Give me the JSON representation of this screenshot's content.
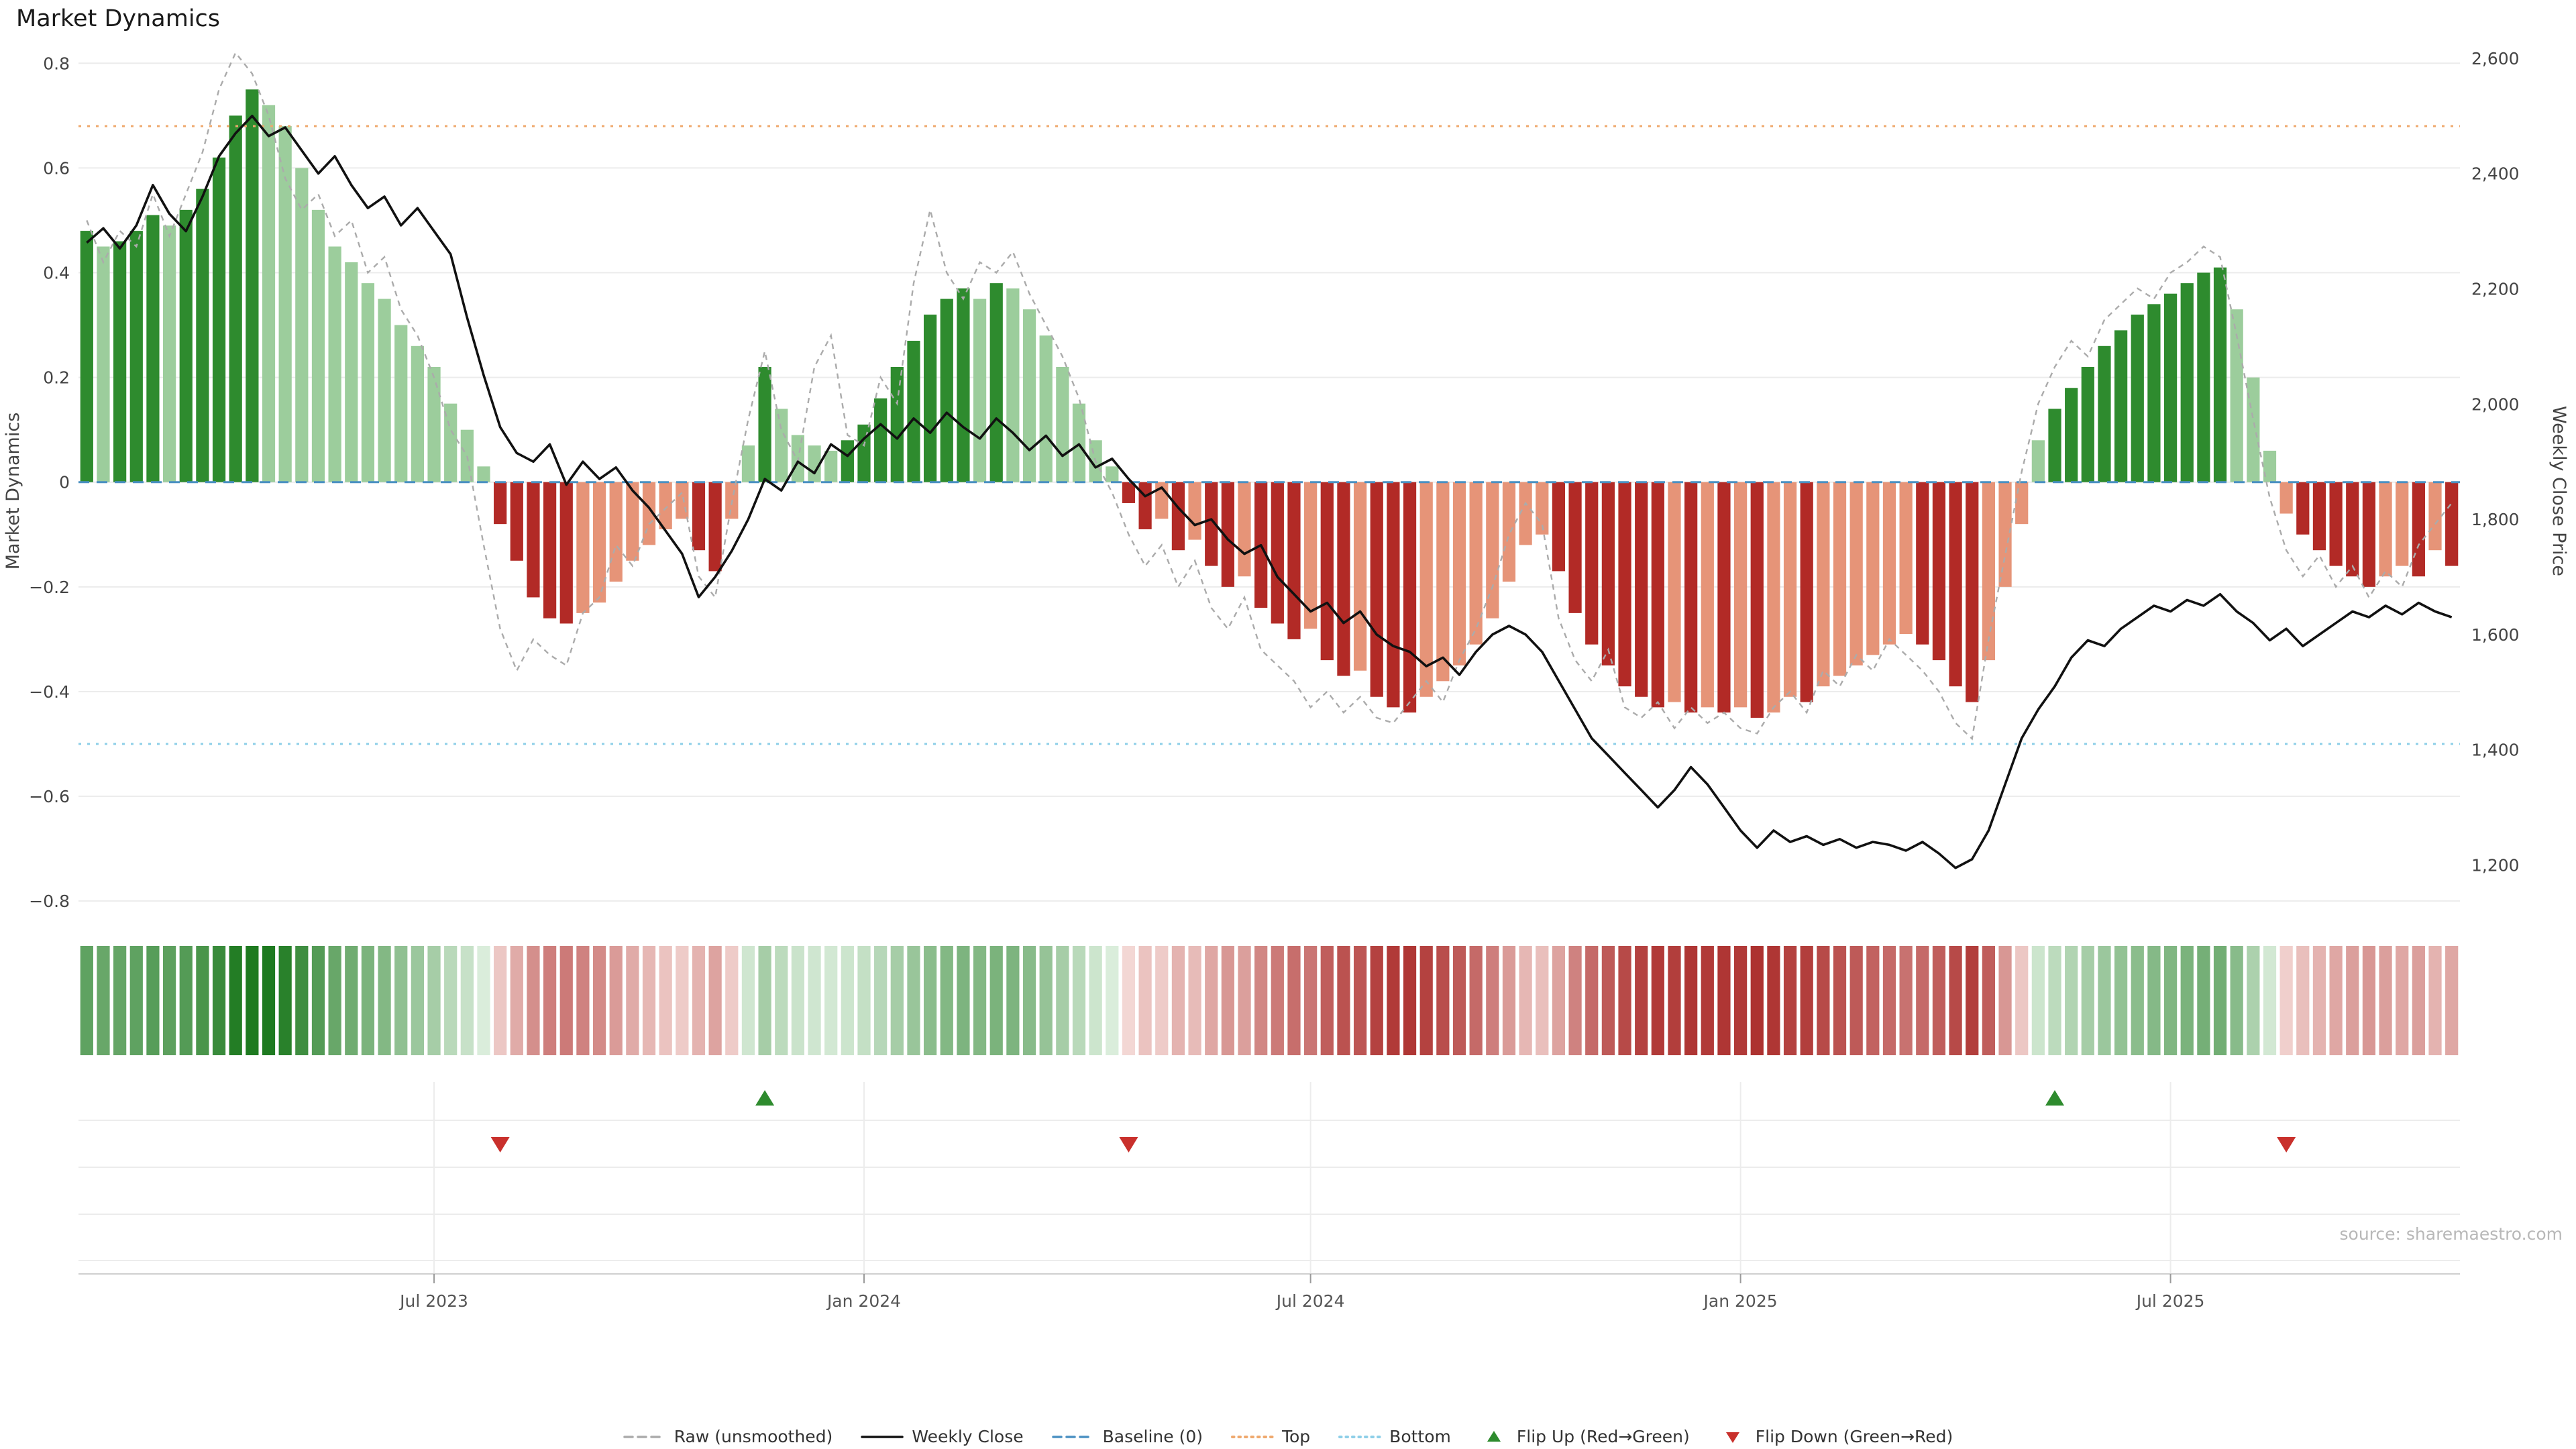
{
  "title": "Market Dynamics",
  "source": "source: sharemaestro.com",
  "left_axis": {
    "label": "Market Dynamics",
    "tick_values": [
      0.8,
      0.6,
      0.4,
      0.2,
      0,
      -0.2,
      -0.4,
      -0.6,
      -0.8
    ],
    "tick_labels": [
      "0.8",
      "0.6",
      "0.4",
      "0.2",
      "0",
      "−0.2",
      "−0.4",
      "−0.6",
      "−0.8"
    ]
  },
  "right_axis": {
    "label": "Weekly Close Price",
    "tick_values": [
      2600,
      2400,
      2200,
      2000,
      1800,
      1600,
      1400,
      1200
    ],
    "tick_labels": [
      "2,600",
      "2,400",
      "2,200",
      "2,000",
      "1,800",
      "1,600",
      "1,400",
      "1,200"
    ]
  },
  "chart_data": {
    "type": "combo",
    "n_weeks": 144,
    "left_ylim": [
      -0.86,
      0.826
    ],
    "right_ylim": [
      1083,
      2615
    ],
    "x_tick_indices": [
      21,
      47,
      74,
      100,
      126
    ],
    "x_tick_labels": [
      "Jul 2023",
      "Jan 2024",
      "Jul 2024",
      "Jan 2025",
      "Jul 2025"
    ],
    "series": [
      {
        "name": "Market Dynamics (bars)",
        "type": "bar",
        "axis": "left",
        "values": [
          0.48,
          0.45,
          0.46,
          0.48,
          0.51,
          0.49,
          0.52,
          0.56,
          0.62,
          0.7,
          0.75,
          0.72,
          0.68,
          0.6,
          0.52,
          0.45,
          0.42,
          0.38,
          0.35,
          0.3,
          0.26,
          0.22,
          0.15,
          0.1,
          0.03,
          -0.08,
          -0.15,
          -0.22,
          -0.26,
          -0.27,
          -0.25,
          -0.23,
          -0.19,
          -0.15,
          -0.12,
          -0.09,
          -0.07,
          -0.13,
          -0.17,
          -0.07,
          0.07,
          0.22,
          0.14,
          0.09,
          0.07,
          0.06,
          0.08,
          0.11,
          0.16,
          0.22,
          0.27,
          0.32,
          0.35,
          0.37,
          0.35,
          0.38,
          0.37,
          0.33,
          0.28,
          0.22,
          0.15,
          0.08,
          0.03,
          -0.04,
          -0.09,
          -0.07,
          -0.13,
          -0.11,
          -0.16,
          -0.2,
          -0.18,
          -0.24,
          -0.27,
          -0.3,
          -0.28,
          -0.34,
          -0.37,
          -0.36,
          -0.41,
          -0.43,
          -0.44,
          -0.41,
          -0.38,
          -0.35,
          -0.31,
          -0.26,
          -0.19,
          -0.12,
          -0.1,
          -0.17,
          -0.25,
          -0.31,
          -0.35,
          -0.39,
          -0.41,
          -0.43,
          -0.42,
          -0.44,
          -0.43,
          -0.44,
          -0.43,
          -0.45,
          -0.44,
          -0.41,
          -0.42,
          -0.39,
          -0.37,
          -0.35,
          -0.33,
          -0.31,
          -0.29,
          -0.31,
          -0.34,
          -0.39,
          -0.42,
          -0.34,
          -0.2,
          -0.08,
          0.08,
          0.14,
          0.18,
          0.22,
          0.26,
          0.29,
          0.32,
          0.34,
          0.36,
          0.38,
          0.4,
          0.41,
          0.33,
          0.2,
          0.06,
          -0.06,
          -0.1,
          -0.13,
          -0.16,
          -0.18,
          -0.2,
          -0.18,
          -0.16,
          -0.18,
          -0.13,
          -0.16
        ]
      },
      {
        "name": "Raw (unsmoothed)",
        "type": "line",
        "style": "dashed",
        "axis": "left",
        "values": [
          0.5,
          0.42,
          0.48,
          0.45,
          0.55,
          0.47,
          0.55,
          0.63,
          0.75,
          0.82,
          0.78,
          0.7,
          0.58,
          0.52,
          0.55,
          0.47,
          0.5,
          0.4,
          0.43,
          0.33,
          0.28,
          0.2,
          0.1,
          0.05,
          -0.12,
          -0.28,
          -0.36,
          -0.3,
          -0.33,
          -0.35,
          -0.25,
          -0.22,
          -0.12,
          -0.16,
          -0.08,
          -0.05,
          -0.02,
          -0.18,
          -0.22,
          -0.04,
          0.12,
          0.25,
          0.1,
          0.04,
          0.22,
          0.28,
          0.09,
          0.07,
          0.2,
          0.15,
          0.38,
          0.52,
          0.4,
          0.35,
          0.42,
          0.4,
          0.44,
          0.36,
          0.3,
          0.24,
          0.16,
          0.04,
          -0.02,
          -0.1,
          -0.16,
          -0.12,
          -0.2,
          -0.15,
          -0.24,
          -0.28,
          -0.22,
          -0.32,
          -0.35,
          -0.38,
          -0.43,
          -0.4,
          -0.44,
          -0.41,
          -0.45,
          -0.46,
          -0.42,
          -0.38,
          -0.42,
          -0.34,
          -0.28,
          -0.2,
          -0.1,
          -0.04,
          -0.08,
          -0.26,
          -0.34,
          -0.38,
          -0.32,
          -0.43,
          -0.45,
          -0.42,
          -0.47,
          -0.43,
          -0.46,
          -0.44,
          -0.47,
          -0.48,
          -0.43,
          -0.4,
          -0.44,
          -0.36,
          -0.39,
          -0.33,
          -0.36,
          -0.3,
          -0.33,
          -0.36,
          -0.4,
          -0.46,
          -0.49,
          -0.3,
          -0.14,
          0.02,
          0.15,
          0.22,
          0.27,
          0.24,
          0.31,
          0.34,
          0.37,
          0.35,
          0.4,
          0.42,
          0.45,
          0.43,
          0.28,
          0.12,
          -0.03,
          -0.13,
          -0.18,
          -0.14,
          -0.2,
          -0.16,
          -0.22,
          -0.17,
          -0.2,
          -0.12,
          -0.08,
          -0.04
        ]
      },
      {
        "name": "Weekly Close",
        "type": "line",
        "axis": "right",
        "values": [
          2280,
          2305,
          2270,
          2310,
          2380,
          2330,
          2300,
          2360,
          2430,
          2470,
          2500,
          2465,
          2480,
          2440,
          2400,
          2430,
          2380,
          2340,
          2360,
          2310,
          2340,
          2300,
          2260,
          2150,
          2050,
          1960,
          1915,
          1900,
          1930,
          1860,
          1900,
          1870,
          1890,
          1850,
          1820,
          1780,
          1740,
          1665,
          1700,
          1745,
          1800,
          1870,
          1850,
          1900,
          1880,
          1930,
          1910,
          1940,
          1965,
          1940,
          1975,
          1950,
          1985,
          1960,
          1940,
          1975,
          1950,
          1920,
          1945,
          1910,
          1930,
          1890,
          1905,
          1870,
          1840,
          1855,
          1820,
          1790,
          1800,
          1765,
          1740,
          1755,
          1700,
          1670,
          1640,
          1655,
          1620,
          1640,
          1600,
          1580,
          1570,
          1545,
          1560,
          1530,
          1570,
          1600,
          1615,
          1600,
          1570,
          1520,
          1470,
          1420,
          1390,
          1360,
          1330,
          1300,
          1330,
          1370,
          1340,
          1300,
          1260,
          1230,
          1260,
          1240,
          1250,
          1235,
          1245,
          1230,
          1240,
          1235,
          1225,
          1240,
          1220,
          1195,
          1210,
          1260,
          1340,
          1420,
          1470,
          1510,
          1560,
          1590,
          1580,
          1610,
          1630,
          1650,
          1640,
          1660,
          1650,
          1670,
          1640,
          1620,
          1590,
          1610,
          1580,
          1600,
          1620,
          1640,
          1630,
          1650,
          1635,
          1655,
          1640,
          1630
        ]
      }
    ],
    "reference_lines": [
      {
        "key": "baseline",
        "name": "Baseline (0)",
        "value": 0,
        "style": "dashed",
        "color": "#4a90c2"
      },
      {
        "key": "top",
        "name": "Top",
        "value": 0.68,
        "style": "dotted",
        "color": "#efa96e"
      },
      {
        "key": "bottom",
        "name": "Bottom",
        "value": -0.5,
        "style": "dotted",
        "color": "#8ecfe8"
      }
    ],
    "markers": {
      "flip_up_indices": [
        41,
        119
      ],
      "flip_down_indices": [
        25,
        63,
        133
      ]
    },
    "heatmap_strip": "mirrors weekly bar values as color intensity (green positive, red negative)"
  },
  "colors": {
    "bar_up_strong": "#2e8b2e",
    "bar_up_weak": "#9ccd9c",
    "bar_down_strong": "#b22a26",
    "bar_down_weak": "#e69478",
    "weekly_close": "#111111",
    "raw_line": "#ababab",
    "baseline": "#4a90c2",
    "top_line": "#efa96e",
    "bottom_line": "#8ecfe8",
    "flip_up": "#2e8b2e",
    "flip_down": "#c9302c",
    "grid": "#ececec",
    "axis_spine": "#cfcfcf",
    "strip_green_low": "#e2f2e3",
    "strip_green_high": "#1e7a20",
    "strip_red_low": "#fae7e4",
    "strip_red_high": "#a82624"
  },
  "legend": {
    "items": [
      {
        "key": "raw",
        "label": "Raw (unsmoothed)",
        "glyph": "dashed-line",
        "color": "#ababab"
      },
      {
        "key": "weekly-close",
        "label": "Weekly Close",
        "glyph": "solid-line",
        "color": "#111111"
      },
      {
        "key": "baseline",
        "label": "Baseline (0)",
        "glyph": "dashed-line",
        "color": "#4a90c2"
      },
      {
        "key": "top",
        "label": "Top",
        "glyph": "dotted-line",
        "color": "#efa96e"
      },
      {
        "key": "bottom",
        "label": "Bottom",
        "glyph": "dotted-line",
        "color": "#8ecfe8"
      },
      {
        "key": "flip-up",
        "label": "Flip Up (Red→Green)",
        "glyph": "triangle-up",
        "color": "#2e8b2e"
      },
      {
        "key": "flip-down",
        "label": "Flip Down (Green→Red)",
        "glyph": "triangle-down",
        "color": "#c9302c"
      }
    ]
  }
}
